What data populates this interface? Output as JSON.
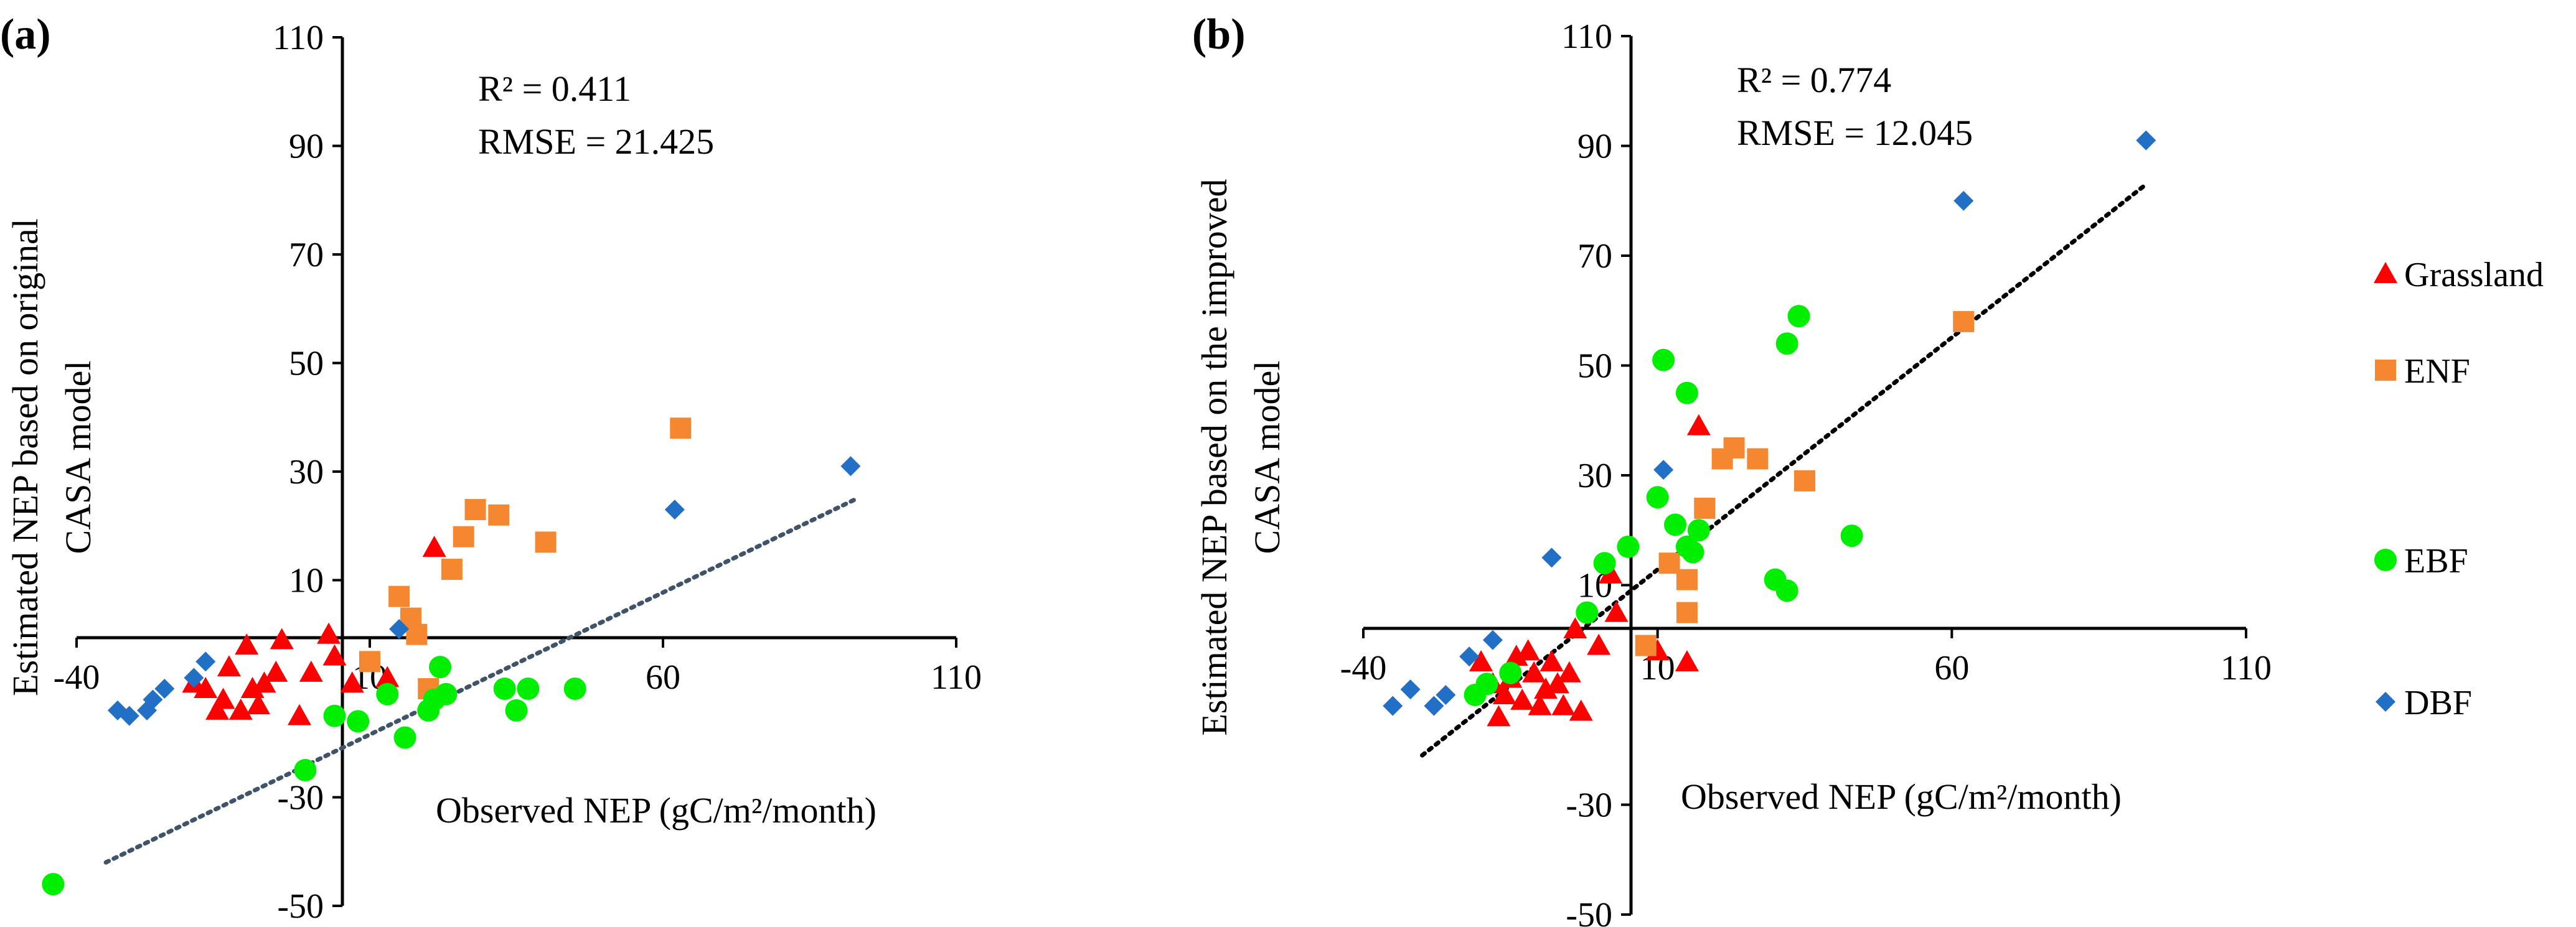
{
  "figure": {
    "legend": {
      "entries": [
        {
          "name": "Grassland",
          "marker": "triangle",
          "color": "#ff0000"
        },
        {
          "name": "ENF",
          "marker": "square",
          "color": "#f58731"
        },
        {
          "name": "EBF",
          "marker": "circle",
          "color": "#00ee00"
        },
        {
          "name": "DBF",
          "marker": "diamond",
          "color": "#2270c6"
        }
      ]
    }
  },
  "chart_data": [
    {
      "type": "scatter",
      "panel_label": "(a)",
      "xlabel": "Observed NEP (gC/m²/month)",
      "ylabel_lines": [
        "Estimated NEP based on original",
        "CASA model"
      ],
      "xlim": [
        -40,
        110
      ],
      "ylim": [
        -50,
        110
      ],
      "xticks": [
        "-40",
        "10",
        "60",
        "110"
      ],
      "yticks": [
        "110",
        "90",
        "70",
        "50",
        "30",
        "10",
        "-30",
        "-50"
      ],
      "stats": {
        "r2": "R² = 0.411",
        "rmse": "RMSE = 21.425"
      },
      "trendline": {
        "x": [
          -35,
          93
        ],
        "y": [
          -42,
          25
        ],
        "color": "#3f5468",
        "style": "dotted"
      },
      "series": [
        {
          "name": "Grassland",
          "points": [
            [
              -20,
              -9
            ],
            [
              -18,
              -10
            ],
            [
              -16,
              -14
            ],
            [
              -15,
              -12
            ],
            [
              -14,
              -6
            ],
            [
              -12,
              -14
            ],
            [
              -11,
              -2
            ],
            [
              -10,
              -10
            ],
            [
              -9,
              -13
            ],
            [
              -8,
              -9
            ],
            [
              -6,
              -7
            ],
            [
              -5,
              -1
            ],
            [
              -2,
              -15
            ],
            [
              0,
              -7
            ],
            [
              3,
              0
            ],
            [
              4,
              -4
            ],
            [
              7,
              -9
            ],
            [
              13,
              -8
            ],
            [
              21,
              16
            ]
          ]
        },
        {
          "name": "ENF",
          "points": [
            [
              10,
              -5
            ],
            [
              15,
              7
            ],
            [
              17,
              3
            ],
            [
              18,
              0
            ],
            [
              20,
              -10
            ],
            [
              24,
              12
            ],
            [
              26,
              18
            ],
            [
              28,
              23
            ],
            [
              32,
              22
            ],
            [
              40,
              17
            ],
            [
              63,
              38
            ]
          ]
        },
        {
          "name": "EBF",
          "points": [
            [
              -44,
              -46
            ],
            [
              -1,
              -25
            ],
            [
              4,
              -15
            ],
            [
              8,
              -16
            ],
            [
              13,
              -11
            ],
            [
              16,
              -19
            ],
            [
              20,
              -14
            ],
            [
              21,
              -12
            ],
            [
              22,
              -6
            ],
            [
              23,
              -11
            ],
            [
              33,
              -10
            ],
            [
              35,
              -14
            ],
            [
              37,
              -10
            ],
            [
              45,
              -10
            ]
          ]
        },
        {
          "name": "DBF",
          "points": [
            [
              -33,
              -14
            ],
            [
              -31,
              -15
            ],
            [
              -28,
              -14
            ],
            [
              -27,
              -12
            ],
            [
              -25,
              -10
            ],
            [
              -20,
              -8
            ],
            [
              -18,
              -5
            ],
            [
              15,
              1
            ],
            [
              62,
              23
            ],
            [
              92,
              31
            ]
          ]
        }
      ]
    },
    {
      "type": "scatter",
      "panel_label": "(b)",
      "xlabel": "Observed NEP (gC/m²/month)",
      "ylabel_lines": [
        "Estimated NEP based on the improved",
        "CASA model"
      ],
      "xlim": [
        -40,
        110
      ],
      "ylim": [
        -50,
        110
      ],
      "xticks": [
        "-40",
        "10",
        "60",
        "110"
      ],
      "yticks": [
        "110",
        "90",
        "70",
        "50",
        "30",
        "10",
        "-30",
        "-50"
      ],
      "stats": {
        "r2": "R² = 0.774",
        "rmse": "RMSE = 12.045"
      },
      "trendline": {
        "x": [
          -30,
          93
        ],
        "y": [
          -21,
          83
        ],
        "color": "#000000",
        "style": "dotted"
      },
      "series": [
        {
          "name": "Grassland",
          "points": [
            [
              -20,
              -4
            ],
            [
              -18,
              -8
            ],
            [
              -17,
              -14
            ],
            [
              -16,
              -10
            ],
            [
              -15,
              -7
            ],
            [
              -14,
              -3
            ],
            [
              -13,
              -11
            ],
            [
              -12,
              -2
            ],
            [
              -11,
              -6
            ],
            [
              -10,
              -12
            ],
            [
              -9,
              -9
            ],
            [
              -8,
              -4
            ],
            [
              -7,
              -8
            ],
            [
              -6,
              -12
            ],
            [
              -5,
              -6
            ],
            [
              -4,
              2
            ],
            [
              -3,
              -13
            ],
            [
              0,
              -1
            ],
            [
              2,
              12
            ],
            [
              3,
              5
            ],
            [
              10,
              -2
            ],
            [
              15,
              -4
            ],
            [
              17,
              39
            ]
          ]
        },
        {
          "name": "ENF",
          "points": [
            [
              8,
              -1
            ],
            [
              12,
              14
            ],
            [
              15,
              5
            ],
            [
              15,
              11
            ],
            [
              18,
              24
            ],
            [
              21,
              33
            ],
            [
              23,
              35
            ],
            [
              27,
              33
            ],
            [
              35,
              29
            ],
            [
              62,
              58
            ]
          ]
        },
        {
          "name": "EBF",
          "points": [
            [
              -21,
              -10
            ],
            [
              -19,
              -8
            ],
            [
              -15,
              -6
            ],
            [
              -2,
              5
            ],
            [
              1,
              14
            ],
            [
              5,
              17
            ],
            [
              10,
              26
            ],
            [
              11,
              51
            ],
            [
              13,
              21
            ],
            [
              15,
              45
            ],
            [
              15,
              17
            ],
            [
              16,
              16
            ],
            [
              17,
              20
            ],
            [
              30,
              11
            ],
            [
              32,
              54
            ],
            [
              32,
              9
            ],
            [
              34,
              59
            ],
            [
              43,
              19
            ]
          ]
        },
        {
          "name": "DBF",
          "points": [
            [
              -35,
              -12
            ],
            [
              -32,
              -9
            ],
            [
              -28,
              -12
            ],
            [
              -26,
              -10
            ],
            [
              -22,
              -3
            ],
            [
              -18,
              0
            ],
            [
              -8,
              15
            ],
            [
              11,
              31
            ],
            [
              62,
              80
            ],
            [
              93,
              91
            ]
          ]
        }
      ]
    }
  ]
}
